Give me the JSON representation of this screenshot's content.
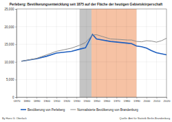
{
  "chart_data": {
    "type": "line",
    "title": "Perleberg: Bevölkerungsentwicklung seit 1875 auf der Fläche der heutigen Gebietskörperschaft",
    "x": [
      1875,
      1890,
      1900,
      1910,
      1925,
      1933,
      1939,
      1946,
      1950,
      1964,
      1971,
      1981,
      1985,
      1990,
      1995,
      2000,
      2005,
      2010,
      2015,
      2020
    ],
    "series": [
      {
        "name": "Bevölkerung von Perleberg",
        "color": "#1f5fbf",
        "line_style": "solid",
        "values": [
          10200,
          10900,
          11600,
          12500,
          13000,
          13600,
          14000,
          17800,
          16500,
          15800,
          15600,
          15300,
          15200,
          14500,
          14300,
          13900,
          13200,
          12600,
          12300,
          12000
        ]
      },
      {
        "name": "Normalisierte Bevölkerung von Brandenburg",
        "color": "#8c8c8c",
        "line_style": "solid",
        "values": [
          10200,
          11000,
          12000,
          13000,
          13900,
          14700,
          15500,
          17600,
          17700,
          16500,
          16400,
          16200,
          16200,
          15800,
          15700,
          16000,
          15900,
          15600,
          16000,
          16700
        ]
      }
    ],
    "periods": [
      {
        "start": 1933,
        "end": 1945,
        "color": "#c4c4c4"
      },
      {
        "start": 1945,
        "end": 1990,
        "color": "#f6c2a4"
      }
    ],
    "xlim": [
      1870,
      2020
    ],
    "xticks": [
      1870,
      1880,
      1890,
      1900,
      1910,
      1920,
      1930,
      1940,
      1950,
      1960,
      1970,
      1980,
      1990,
      2000,
      2010,
      2020
    ],
    "ylim": [
      0,
      25000
    ],
    "yticks": [
      0,
      {
        "value": 5000,
        "label": "5,000"
      },
      {
        "value": 10000,
        "label": "10,000"
      },
      {
        "value": 15000,
        "label": "15,000"
      },
      {
        "value": 20000,
        "label": "20,000"
      },
      {
        "value": 25000,
        "label": "25,000"
      }
    ],
    "grid": true,
    "legend": "bottom",
    "annotations": [
      "By Hans G. Oberlack",
      "Quelle: Amt für Statistik Berlin-Brandenburg"
    ]
  }
}
